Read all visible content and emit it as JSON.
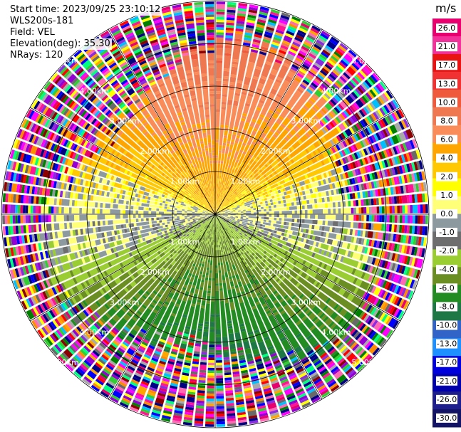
{
  "header": {
    "start_time": "Start time: 2023/09/25 23:10:12",
    "instrument": "WLS200s-181",
    "field": "Field: VEL",
    "elevation": "Elevation(deg): 35.30",
    "nrays": "NRays: 120"
  },
  "chart_data": {
    "type": "heatmap",
    "projection": "polar PPI",
    "title": "",
    "nrays": 120,
    "range_rings_km": [
      1.0,
      2.0,
      3.0,
      4.0,
      5.0
    ],
    "range_ring_labels": [
      "1.00km",
      "2.00km",
      "3.00km",
      "4.00km",
      "5.00km"
    ],
    "colorbar": {
      "unit": "m/s",
      "ticks": [
        "26.0",
        "21.0",
        "17.0",
        "13.0",
        "10.0",
        "8.0",
        "6.0",
        "4.0",
        "2.0",
        "1.0",
        "0.0",
        "-1.0",
        "-2.0",
        "-4.0",
        "-6.0",
        "-8.0",
        "-10.0",
        "-13.0",
        "-17.0",
        "-21.0",
        "-26.0",
        "-30.0"
      ],
      "colors": [
        "#e8006e",
        "#f0329a",
        "#e81414",
        "#f03232",
        "#f05a3c",
        "#f07850",
        "#fa8c5a",
        "#ffa500",
        "#ffc800",
        "#ffff00",
        "#ffff78",
        "#8c9aa0",
        "#6e6e6e",
        "#9acd32",
        "#6b8e23",
        "#228b22",
        "#1e7846",
        "#3264c8",
        "#1e90ff",
        "#0000dc",
        "#0000aa",
        "#1e1e8c",
        "#141464"
      ]
    },
    "velocity_pattern": {
      "description_free_values": true,
      "near_zero_band_deg": [
        260,
        280
      ],
      "positive_sector_center_deg": 0,
      "negative_sector_center_deg": 180,
      "valid_range_km": 3.6,
      "max_range_km": 5.6
    }
  }
}
